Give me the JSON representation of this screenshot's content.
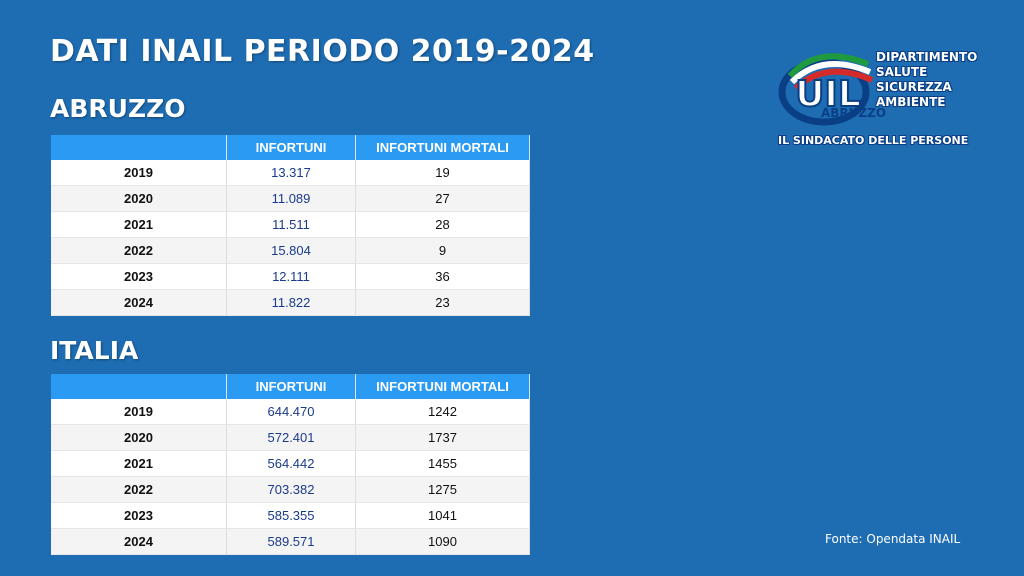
{
  "title": "DATI INAIL PERIODO 2019-2024",
  "abruzzo": {
    "label": "ABRUZZO",
    "headers": [
      "",
      "INFORTUNI",
      "INFORTUNI MORTALI"
    ],
    "rows": [
      {
        "year": "2019",
        "infortuni": "13.317",
        "mortali": "19"
      },
      {
        "year": "2020",
        "infortuni": "11.089",
        "mortali": "27"
      },
      {
        "year": "2021",
        "infortuni": "11.511",
        "mortali": "28"
      },
      {
        "year": "2022",
        "infortuni": "15.804",
        "mortali": "9"
      },
      {
        "year": "2023",
        "infortuni": "12.111",
        "mortali": "36"
      },
      {
        "year": "2024",
        "infortuni": "11.822",
        "mortali": "23"
      }
    ]
  },
  "italia": {
    "label": "ITALIA",
    "headers": [
      "",
      "INFORTUNI",
      "INFORTUNI MORTALI"
    ],
    "rows": [
      {
        "year": "2019",
        "infortuni": "644.470",
        "mortali": "1242"
      },
      {
        "year": "2020",
        "infortuni": "572.401",
        "mortali": "1737"
      },
      {
        "year": "2021",
        "infortuni": "564.442",
        "mortali": "1455"
      },
      {
        "year": "2022",
        "infortuni": "703.382",
        "mortali": "1275"
      },
      {
        "year": "2023",
        "infortuni": "585.355",
        "mortali": "1041"
      },
      {
        "year": "2024",
        "infortuni": "589.571",
        "mortali": "1090"
      }
    ]
  },
  "logo": {
    "brand": "UIL",
    "region": "ABRUZZO",
    "department": [
      "DIPARTIMENTO",
      "SALUTE",
      "SICUREZZA",
      "AMBIENTE"
    ],
    "slogan": "IL SINDACATO DELLE PERSONE"
  },
  "source": "Fonte: Opendata INAIL",
  "colors": {
    "background": "#1e6db3",
    "header": "#2b9af3",
    "infortuni_text": "#1a3a8a"
  }
}
